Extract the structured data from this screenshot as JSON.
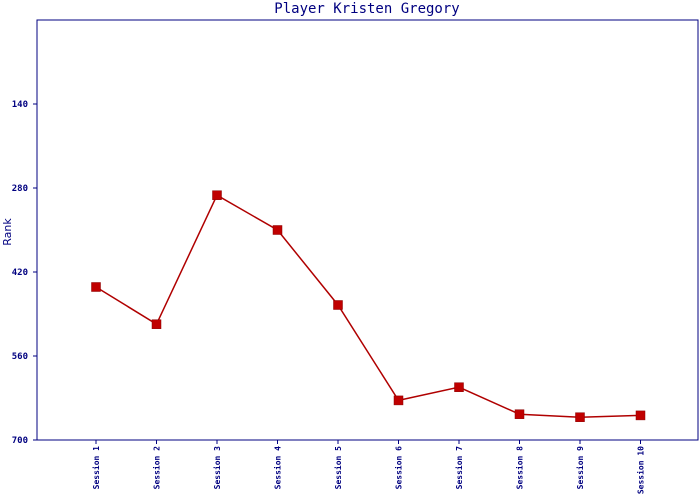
{
  "chart_data": {
    "type": "line",
    "title": "Player Kristen Gregory",
    "ylabel": "Rank",
    "xlabel": "",
    "categories": [
      "Session 1",
      "Session 2",
      "Session 3",
      "Session 4",
      "Session 5",
      "Session 6",
      "Session 7",
      "Session 8",
      "Session 9",
      "Session 10"
    ],
    "series": [
      {
        "values": [
          445,
          507,
          292,
          350,
          475,
          634,
          612,
          657,
          662,
          659
        ]
      }
    ],
    "y_axis": {
      "min": 0,
      "max": 700,
      "inverted": true,
      "ticks": [
        140,
        280,
        420,
        560,
        700
      ],
      "tick_labels": [
        "140",
        "280",
        "420",
        "560",
        "700"
      ]
    },
    "grid": false,
    "legend": "none",
    "colors": {
      "line": "#b00000",
      "marker": "#c00000",
      "axis": "#000080",
      "text": "#000080"
    }
  }
}
